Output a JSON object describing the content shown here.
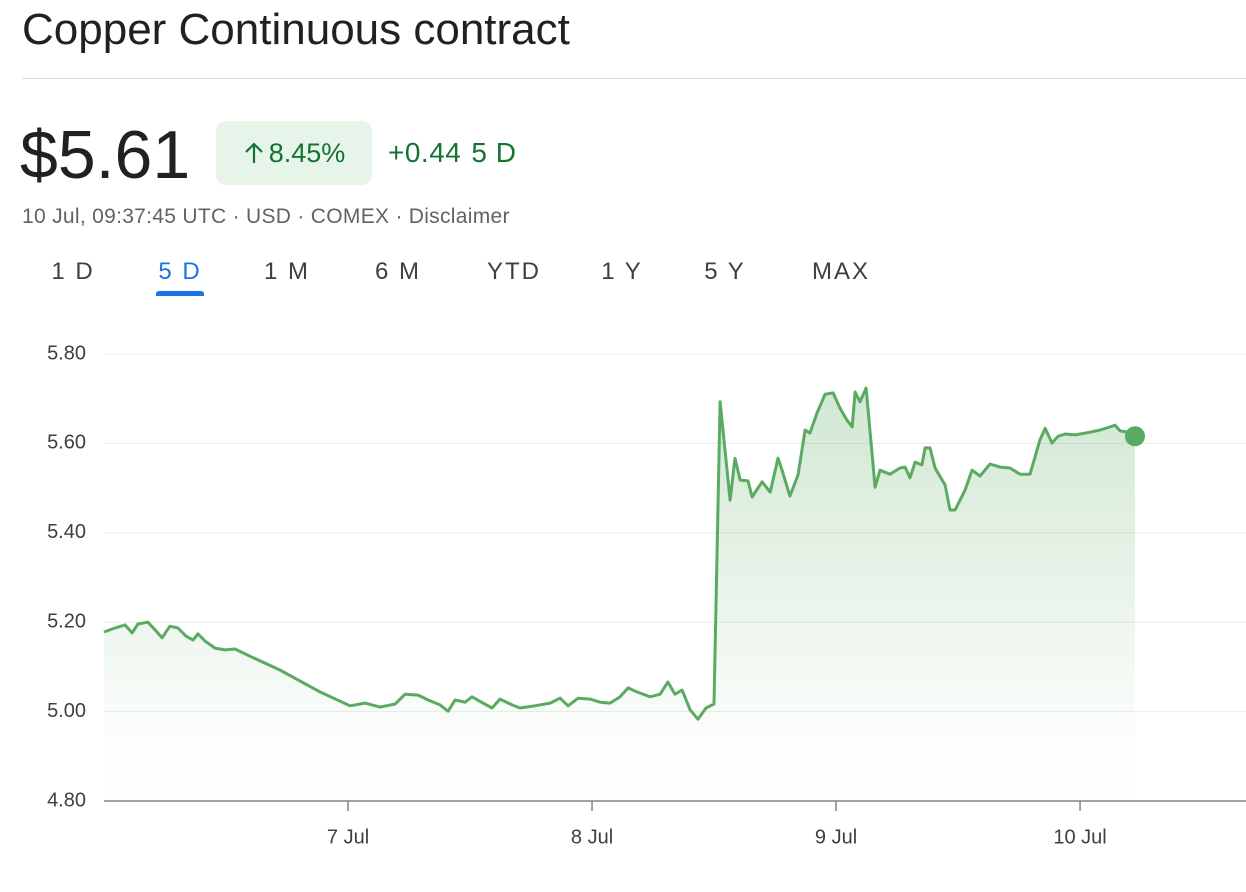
{
  "header": {
    "title": "Copper Continuous contract"
  },
  "quote": {
    "price": "$5.61",
    "change_percent": "8.45%",
    "change": "+0.44",
    "period": "5 D",
    "details": "10 Jul, 09:37:45 UTC · USD · COMEX ·",
    "disclaimer": "Disclaimer"
  },
  "tabs": {
    "items": [
      "1 D",
      "5 D",
      "1 M",
      "6 M",
      "YTD",
      "1 Y",
      "5 Y",
      "MAX"
    ],
    "selected": 1
  },
  "chart_data": {
    "type": "line",
    "color": "#5aab61",
    "area": true,
    "grid": true,
    "xlim": [
      6,
      10.68
    ],
    "ylim": [
      4.8,
      5.8
    ],
    "xticks": [
      {
        "value": 7,
        "label": "7 Jul"
      },
      {
        "value": 8,
        "label": "8 Jul"
      },
      {
        "value": 9,
        "label": "9 Jul"
      },
      {
        "value": 10,
        "label": "10 Jul"
      }
    ],
    "yticks": [
      {
        "value": 4.8,
        "label": "4.80"
      },
      {
        "value": 5.0,
        "label": "5.00"
      },
      {
        "value": 5.2,
        "label": "5.20"
      },
      {
        "value": 5.4,
        "label": "5.40"
      },
      {
        "value": 5.6,
        "label": "5.60"
      },
      {
        "value": 5.8,
        "label": "5.80"
      }
    ],
    "x": [
      6.0,
      6.045,
      6.086,
      6.115,
      6.139,
      6.18,
      6.209,
      6.238,
      6.27,
      6.303,
      6.336,
      6.365,
      6.385,
      6.414,
      6.455,
      6.496,
      6.537,
      6.598,
      6.721,
      6.885,
      7.008,
      7.07,
      7.131,
      7.193,
      7.234,
      7.287,
      7.328,
      7.377,
      7.41,
      7.439,
      7.48,
      7.508,
      7.553,
      7.59,
      7.623,
      7.672,
      7.705,
      7.766,
      7.828,
      7.869,
      7.902,
      7.943,
      7.992,
      8.033,
      8.074,
      8.115,
      8.148,
      8.184,
      8.238,
      8.279,
      8.311,
      8.34,
      8.369,
      8.402,
      8.434,
      8.467,
      8.5,
      8.525,
      8.545,
      8.566,
      8.586,
      8.607,
      8.639,
      8.656,
      8.697,
      8.73,
      8.762,
      8.779,
      8.811,
      8.844,
      8.873,
      8.893,
      8.922,
      8.955,
      8.988,
      9.016,
      9.045,
      9.066,
      9.078,
      9.098,
      9.123,
      9.16,
      9.18,
      9.221,
      9.262,
      9.283,
      9.303,
      9.324,
      9.352,
      9.365,
      9.385,
      9.406,
      9.447,
      9.467,
      9.488,
      9.529,
      9.557,
      9.59,
      9.631,
      9.672,
      9.713,
      9.754,
      9.795,
      9.836,
      9.857,
      9.885,
      9.91,
      9.939,
      9.98,
      10.041,
      10.082,
      10.123,
      10.143,
      10.164,
      10.197,
      10.225
    ],
    "values": [
      5.178,
      5.187,
      5.194,
      5.176,
      5.196,
      5.2,
      5.183,
      5.165,
      5.191,
      5.187,
      5.169,
      5.16,
      5.174,
      5.158,
      5.142,
      5.138,
      5.14,
      5.124,
      5.093,
      5.044,
      5.013,
      5.019,
      5.01,
      5.017,
      5.039,
      5.037,
      5.026,
      5.015,
      5.001,
      5.026,
      5.021,
      5.033,
      5.019,
      5.008,
      5.028,
      5.015,
      5.008,
      5.013,
      5.019,
      5.03,
      5.013,
      5.03,
      5.028,
      5.021,
      5.019,
      5.033,
      5.053,
      5.044,
      5.033,
      5.039,
      5.066,
      5.039,
      5.048,
      5.004,
      4.983,
      5.008,
      5.017,
      5.693,
      5.585,
      5.473,
      5.567,
      5.518,
      5.516,
      5.48,
      5.514,
      5.491,
      5.567,
      5.54,
      5.482,
      5.529,
      5.63,
      5.623,
      5.668,
      5.71,
      5.713,
      5.679,
      5.652,
      5.637,
      5.715,
      5.693,
      5.724,
      5.502,
      5.54,
      5.531,
      5.545,
      5.547,
      5.523,
      5.558,
      5.552,
      5.59,
      5.59,
      5.545,
      5.507,
      5.451,
      5.451,
      5.496,
      5.54,
      5.527,
      5.554,
      5.547,
      5.545,
      5.531,
      5.531,
      5.608,
      5.634,
      5.601,
      5.616,
      5.621,
      5.619,
      5.625,
      5.63,
      5.637,
      5.641,
      5.628,
      5.625,
      5.616
    ]
  }
}
